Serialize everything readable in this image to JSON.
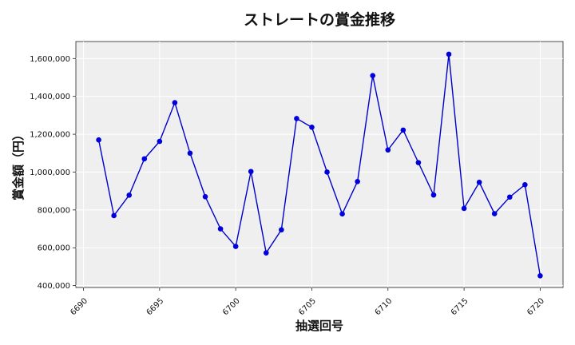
{
  "chart_data": {
    "type": "line",
    "title": "ストレートの賞金推移",
    "xlabel": "抽選回号",
    "ylabel": "賞金額（円）",
    "xlim": [
      6689.5,
      6721.5
    ],
    "ylim": [
      390000,
      1690000
    ],
    "x_ticks": [
      6690,
      6695,
      6700,
      6705,
      6710,
      6715,
      6720
    ],
    "y_ticks": [
      400000,
      600000,
      800000,
      1000000,
      1200000,
      1400000,
      1600000
    ],
    "y_tick_labels": [
      "400,000",
      "600,000",
      "800,000",
      "1,000,000",
      "1,200,000",
      "1,400,000",
      "1,600,000"
    ],
    "grid": true,
    "series": [
      {
        "color": "#0000cc",
        "x": [
          6691,
          6692,
          6693,
          6694,
          6695,
          6696,
          6697,
          6698,
          6699,
          6700,
          6701,
          6702,
          6703,
          6704,
          6705,
          6706,
          6707,
          6708,
          6709,
          6710,
          6711,
          6712,
          6713,
          6714,
          6715,
          6716,
          6717,
          6718,
          6719,
          6720
        ],
        "y": [
          1170000,
          770000,
          878000,
          1070000,
          1162000,
          1367000,
          1100000,
          870000,
          700000,
          607000,
          1003000,
          573000,
          695000,
          1283000,
          1237000,
          1000000,
          779000,
          950000,
          1510000,
          1117000,
          1222000,
          1050000,
          879000,
          1623000,
          808000,
          946000,
          780000,
          868000,
          933000,
          452000
        ]
      }
    ]
  }
}
